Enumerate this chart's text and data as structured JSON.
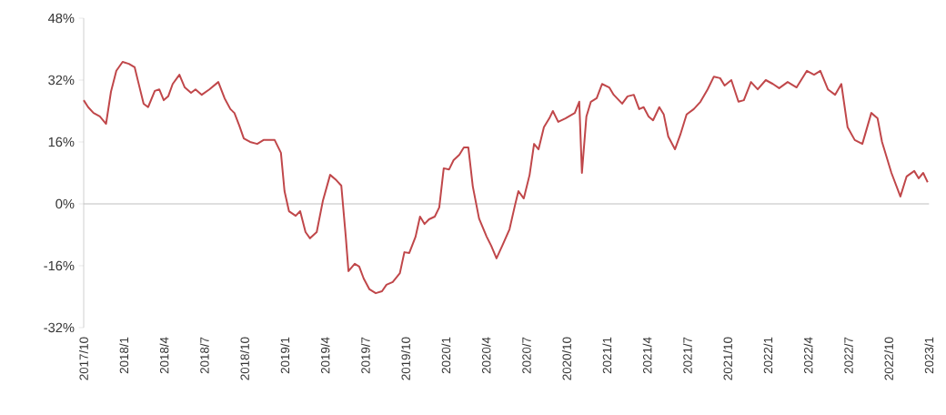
{
  "chart_data": {
    "type": "line",
    "color": "#c0474a",
    "line_style": "solid",
    "marker": "none",
    "grid": false,
    "ref_lines": [
      {
        "axis": "y",
        "value": 0,
        "color": "#bfbfbf"
      }
    ],
    "xlim": [
      "2017-10-01",
      "2023-01-01"
    ],
    "xticks": [
      {
        "value": "2017-10",
        "label": "2017/10"
      },
      {
        "value": "2018-01",
        "label": "2018/1"
      },
      {
        "value": "2018-04",
        "label": "2018/4"
      },
      {
        "value": "2018-07",
        "label": "2018/7"
      },
      {
        "value": "2018-10",
        "label": "2018/10"
      },
      {
        "value": "2019-01",
        "label": "2019/1"
      },
      {
        "value": "2019-04",
        "label": "2019/4"
      },
      {
        "value": "2019-07",
        "label": "2019/7"
      },
      {
        "value": "2019-10",
        "label": "2019/10"
      },
      {
        "value": "2020-01",
        "label": "2020/1"
      },
      {
        "value": "2020-04",
        "label": "2020/4"
      },
      {
        "value": "2020-07",
        "label": "2020/7"
      },
      {
        "value": "2020-10",
        "label": "2020/10"
      },
      {
        "value": "2021-01",
        "label": "2021/1"
      },
      {
        "value": "2021-04",
        "label": "2021/4"
      },
      {
        "value": "2021-07",
        "label": "2021/7"
      },
      {
        "value": "2021-10",
        "label": "2021/10"
      },
      {
        "value": "2022-01",
        "label": "2022/1"
      },
      {
        "value": "2022-04",
        "label": "2022/4"
      },
      {
        "value": "2022-07",
        "label": "2022/7"
      },
      {
        "value": "2022-10",
        "label": "2022/10"
      },
      {
        "value": "2023-01",
        "label": "2023/1"
      }
    ],
    "ylim": [
      -32,
      48
    ],
    "yticks": [
      {
        "value": -32,
        "label": "-32%"
      },
      {
        "value": -16,
        "label": "-16%"
      },
      {
        "value": 0,
        "label": "0%"
      },
      {
        "value": 16,
        "label": "16%"
      },
      {
        "value": 32,
        "label": "32%"
      },
      {
        "value": 48,
        "label": "48%"
      }
    ],
    "x": [
      "2017-10-01",
      "2017-10-11",
      "2017-10-23",
      "2017-11-07",
      "2017-11-21",
      "2017-12-02",
      "2017-12-14",
      "2017-12-28",
      "2018-01-12",
      "2018-01-25",
      "2018-02-03",
      "2018-02-15",
      "2018-02-25",
      "2018-03-10",
      "2018-03-20",
      "2018-03-30",
      "2018-04-10",
      "2018-04-20",
      "2018-05-05",
      "2018-05-17",
      "2018-06-01",
      "2018-06-11",
      "2018-06-25",
      "2018-07-12",
      "2018-08-02",
      "2018-08-16",
      "2018-08-29",
      "2018-09-08",
      "2018-09-19",
      "2018-09-29",
      "2018-10-13",
      "2018-10-29",
      "2018-11-13",
      "2018-12-08",
      "2018-12-22",
      "2018-12-30",
      "2019-01-10",
      "2019-01-25",
      "2019-02-05",
      "2019-02-17",
      "2019-02-27",
      "2019-03-12",
      "2019-03-26",
      "2019-04-12",
      "2019-04-26",
      "2019-05-07",
      "2019-05-17",
      "2019-05-23",
      "2019-06-07",
      "2019-06-17",
      "2019-06-27",
      "2019-07-10",
      "2019-07-24",
      "2019-08-08",
      "2019-08-18",
      "2019-09-02",
      "2019-09-18",
      "2019-09-28",
      "2019-10-09",
      "2019-10-23",
      "2019-11-03",
      "2019-11-13",
      "2019-11-23",
      "2019-12-06",
      "2019-12-16",
      "2019-12-26",
      "2020-01-08",
      "2020-01-18",
      "2020-02-01",
      "2020-02-11",
      "2020-02-21",
      "2020-03-01",
      "2020-03-15",
      "2020-04-02",
      "2020-04-12",
      "2020-04-24",
      "2020-05-07",
      "2020-05-23",
      "2020-06-05",
      "2020-06-13",
      "2020-06-25",
      "2020-07-08",
      "2020-07-18",
      "2020-07-28",
      "2020-08-10",
      "2020-08-22",
      "2020-08-30",
      "2020-09-12",
      "2020-09-28",
      "2020-10-19",
      "2020-10-29",
      "2020-11-05",
      "2020-11-15",
      "2020-11-25",
      "2020-12-08",
      "2020-12-20",
      "2021-01-06",
      "2021-01-16",
      "2021-02-05",
      "2021-02-17",
      "2021-03-01",
      "2021-03-13",
      "2021-03-23",
      "2021-04-04",
      "2021-04-14",
      "2021-04-28",
      "2021-05-08",
      "2021-05-18",
      "2021-06-03",
      "2021-06-15",
      "2021-06-29",
      "2021-07-15",
      "2021-07-30",
      "2021-08-16",
      "2021-08-30",
      "2021-09-14",
      "2021-09-24",
      "2021-10-09",
      "2021-10-25",
      "2021-11-07",
      "2021-11-23",
      "2021-12-08",
      "2021-12-26",
      "2022-01-12",
      "2022-01-26",
      "2022-02-15",
      "2022-03-05",
      "2022-03-28",
      "2022-04-14",
      "2022-04-28",
      "2022-05-15",
      "2022-06-01",
      "2022-06-15",
      "2022-06-29",
      "2022-07-15",
      "2022-08-02",
      "2022-08-22",
      "2022-09-06",
      "2022-09-16",
      "2022-10-07",
      "2022-10-27",
      "2022-11-11",
      "2022-11-28",
      "2022-12-08",
      "2022-12-18",
      "2022-12-28"
    ],
    "values": [
      26.8,
      25,
      23.5,
      22.6,
      20.7,
      29,
      34.4,
      36.7,
      36.2,
      35.3,
      31.5,
      25.9,
      25,
      29.2,
      29.6,
      26.8,
      27.8,
      31,
      33.4,
      30.1,
      28.7,
      29.6,
      28.2,
      29.6,
      31.5,
      27.3,
      24.5,
      23.5,
      20.2,
      16.9,
      16,
      15.5,
      16.5,
      16.5,
      13.2,
      3.3,
      -1.9,
      -3.1,
      -1.9,
      -7.3,
      -8.9,
      -7.3,
      0.9,
      7.5,
      6.1,
      4.7,
      -8.5,
      -17.4,
      -15.5,
      -16.2,
      -19.3,
      -22.1,
      -23.1,
      -22.6,
      -20.9,
      -20.2,
      -17.9,
      -12.5,
      -12.7,
      -8.5,
      -3.3,
      -5.2,
      -4,
      -3.3,
      -0.9,
      9.2,
      8.9,
      11.3,
      12.7,
      14.6,
      14.6,
      4.5,
      -3.8,
      -8.5,
      -10.8,
      -14.1,
      -10.8,
      -6.6,
      -0.5,
      3.3,
      1.4,
      7.5,
      15.5,
      14.1,
      19.8,
      22.1,
      24,
      21.2,
      22.1,
      23.5,
      26.4,
      8,
      22.6,
      26.4,
      27.3,
      31,
      30.1,
      28.2,
      25.9,
      27.8,
      28.2,
      24.5,
      25,
      22.6,
      21.6,
      25,
      23.1,
      17.4,
      14.1,
      17.9,
      23.1,
      24.5,
      26.4,
      29.6,
      32.9,
      32.5,
      30.6,
      32,
      26.4,
      26.8,
      31.5,
      29.6,
      32,
      31,
      29.9,
      31.5,
      30.1,
      34.4,
      33.4,
      34.4,
      29.6,
      28.2,
      31,
      19.8,
      16.5,
      15.5,
      23.5,
      22.1,
      16,
      8,
      1.9,
      7.1,
      8.5,
      6.6,
      8,
      5.6
    ]
  }
}
